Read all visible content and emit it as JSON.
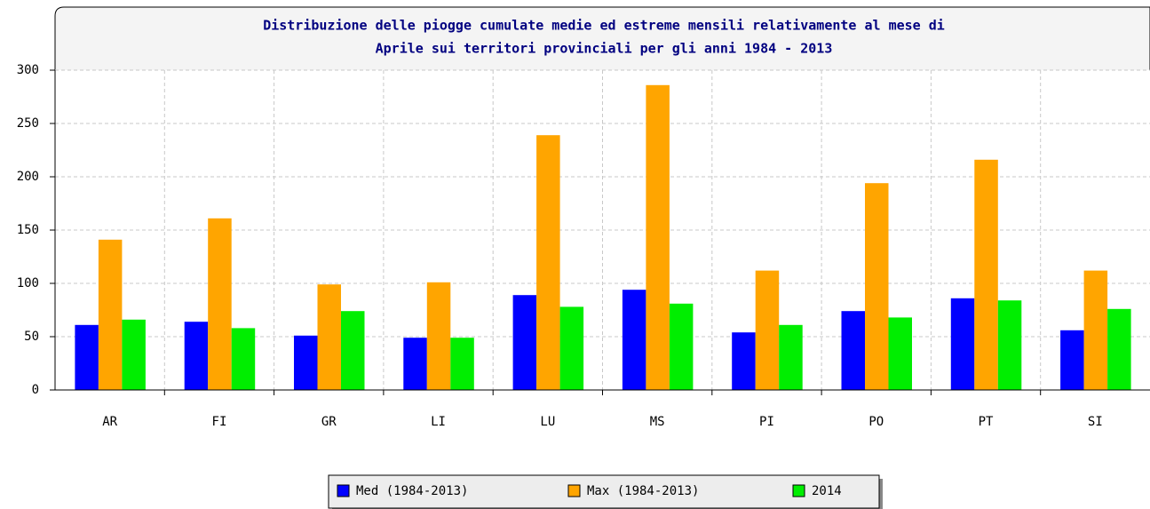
{
  "chart_data": {
    "type": "bar",
    "title": [
      "Distribuzione delle piogge cumulate medie ed estreme mensili relativamente al mese di",
      "Aprile sui territori provinciali per gli anni 1984 - 2013"
    ],
    "categories": [
      "AR",
      "FI",
      "GR",
      "LI",
      "LU",
      "MS",
      "PI",
      "PO",
      "PT",
      "SI"
    ],
    "series": [
      {
        "name": "Med (1984-2013)",
        "color": "#0000ff",
        "values": [
          61,
          64,
          51,
          49,
          89,
          94,
          54,
          74,
          86,
          56
        ]
      },
      {
        "name": "Max (1984-2013)",
        "color": "#ffa500",
        "values": [
          141,
          161,
          99,
          101,
          239,
          286,
          112,
          194,
          216,
          112
        ]
      },
      {
        "name": "2014",
        "color": "#00ee00",
        "values": [
          66,
          58,
          74,
          49,
          78,
          81,
          61,
          68,
          84,
          76
        ]
      }
    ],
    "ylim": [
      0,
      300
    ],
    "yticks": [
      0,
      50,
      100,
      150,
      200,
      250,
      300
    ],
    "grid": true,
    "legend": "bottom"
  }
}
